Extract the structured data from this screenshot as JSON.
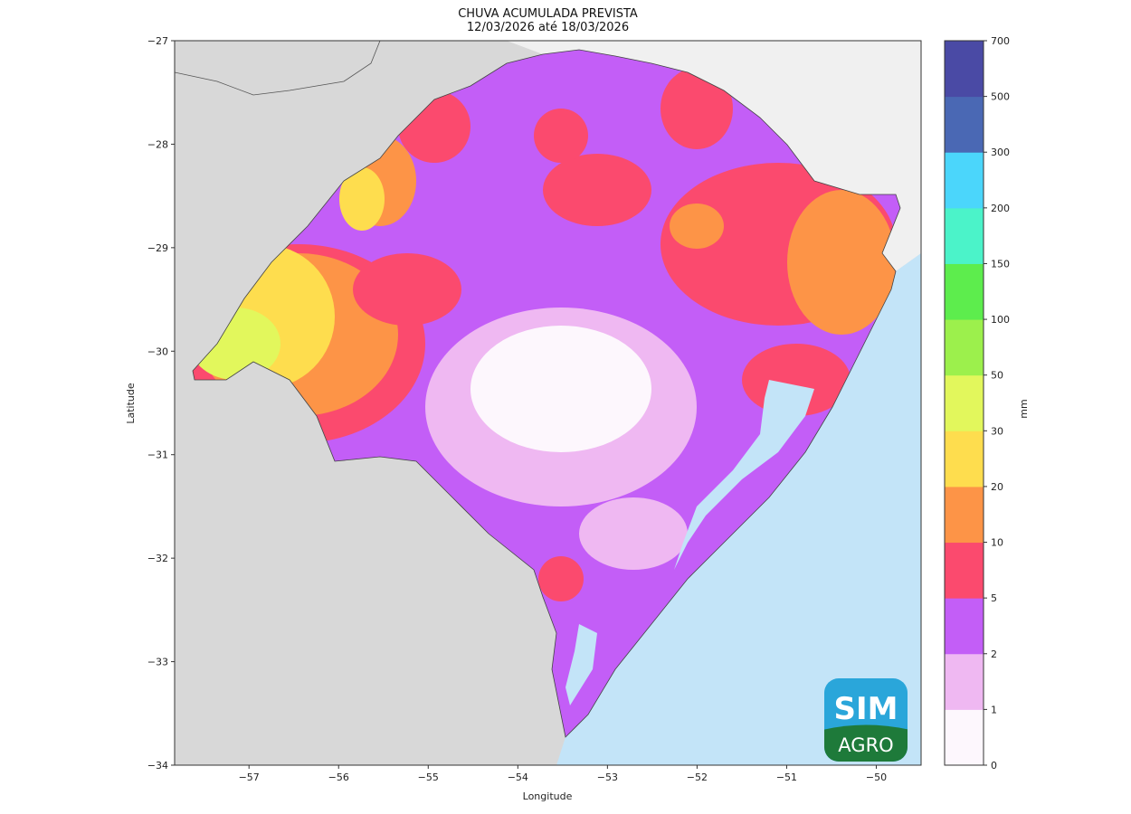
{
  "title": {
    "line1": "CHUVA ACUMULADA PREVISTA",
    "line2": "12/03/2026 até 18/03/2026"
  },
  "axes": {
    "xlabel": "Longitude",
    "ylabel": "Latitude",
    "xticks": [
      "−57",
      "−56",
      "−55",
      "−54",
      "−53",
      "−52",
      "−51",
      "−50"
    ],
    "xtick_values": [
      -57,
      -56,
      -55,
      -54,
      -53,
      -52,
      -51,
      -50
    ],
    "yticks": [
      "−27",
      "−28",
      "−29",
      "−30",
      "−31",
      "−32",
      "−33",
      "−34"
    ],
    "ytick_values": [
      -27,
      -28,
      -29,
      -30,
      -31,
      -32,
      -33,
      -34
    ],
    "xlim": [
      -57.83,
      -49.5
    ],
    "ylim": [
      -34,
      -27
    ]
  },
  "colorbar": {
    "unit": "mm",
    "labels": [
      "0",
      "1",
      "2",
      "5",
      "10",
      "20",
      "30",
      "50",
      "100",
      "150",
      "200",
      "300",
      "500",
      "700"
    ],
    "colors": [
      "#fdf7fd",
      "#efb8f2",
      "#c35ef7",
      "#fb4a6e",
      "#fd9447",
      "#fedd4e",
      "#e2f75c",
      "#9cf04c",
      "#5ded4d",
      "#4bf3c9",
      "#4bd6fb",
      "#4a68b4",
      "#4a4aa5"
    ]
  },
  "map_colors": {
    "land_outside": "#d8d8d8",
    "land_north": "#f0f0f0",
    "ocean": "#c3e4f8"
  },
  "logo": {
    "top": "SIM",
    "bottom": "AGRO"
  }
}
